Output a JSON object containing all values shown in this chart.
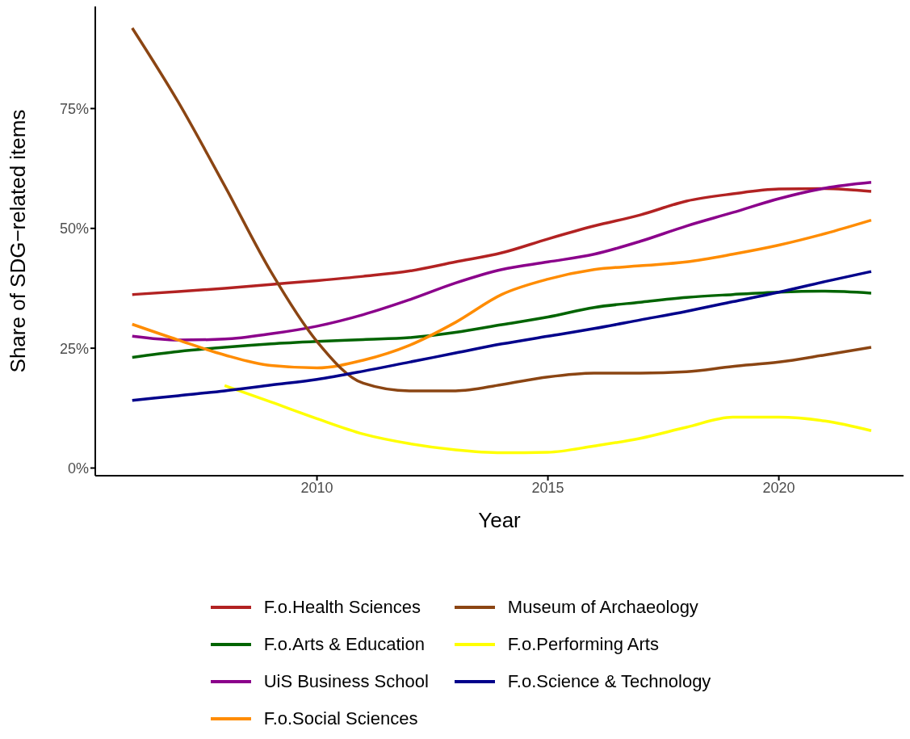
{
  "chart_data": {
    "type": "line",
    "xlabel": "Year",
    "ylabel": "Share of SDG−related items",
    "xlim": [
      2005.2,
      2022.7
    ],
    "xticks": [
      2010,
      2015,
      2020
    ],
    "ylim": [
      -1.6,
      96.3
    ],
    "yticks": [
      {
        "value": 0,
        "label": "0%"
      },
      {
        "value": 25,
        "label": "25%"
      },
      {
        "value": 50,
        "label": "50%"
      },
      {
        "value": 75,
        "label": "75%"
      }
    ],
    "legend": "bottom",
    "marker": "none",
    "line_style": "solid",
    "x": [
      2006,
      2007,
      2008,
      2009,
      2010,
      2011,
      2012,
      2013,
      2014,
      2015,
      2016,
      2017,
      2018,
      2019,
      2020,
      2021,
      2022
    ],
    "series": [
      {
        "name": "F.o.Health Sciences",
        "color": "#b22222",
        "values": [
          36.2,
          36.8,
          37.5,
          38.3,
          39.1,
          40,
          41.1,
          43,
          44.9,
          47.8,
          50.5,
          52.8,
          55.7,
          57.2,
          58.2,
          58.3,
          57.7
        ]
      },
      {
        "name": "F.o.Arts & Education",
        "color": "#006400",
        "values": [
          23.1,
          24.3,
          25.2,
          25.9,
          26.4,
          26.8,
          27.2,
          28.3,
          29.9,
          31.5,
          33.5,
          34.6,
          35.6,
          36.2,
          36.7,
          36.9,
          36.5
        ]
      },
      {
        "name": "UiS Business School",
        "color": "#8b008b",
        "values": [
          27.5,
          26.7,
          26.9,
          28,
          29.6,
          32,
          35.1,
          38.6,
          41.4,
          43,
          44.6,
          47.3,
          50.5,
          53.3,
          56.2,
          58.4,
          59.6
        ]
      },
      {
        "name": "F.o.Social Sciences",
        "color": "#ff8c00",
        "values": [
          30,
          26.7,
          23.6,
          21.4,
          20.9,
          22.5,
          25.6,
          30.4,
          36.2,
          39.4,
          41.4,
          42.2,
          43,
          44.6,
          46.5,
          48.9,
          51.7
        ]
      },
      {
        "name": "Museum of Archaeology",
        "color": "#8b4513",
        "values": [
          91.8,
          76.3,
          58.9,
          41,
          26.4,
          17.7,
          16.1,
          16.1,
          17.4,
          19,
          19.8,
          19.8,
          20.1,
          21.2,
          22.1,
          23.6,
          25.2
        ]
      },
      {
        "name": "F.o.Performing Arts",
        "color": "#ffff00",
        "x": [
          2008,
          2009,
          2010,
          2011,
          2012,
          2013,
          2014,
          2015,
          2016,
          2017,
          2018,
          2019,
          2020,
          2021,
          2022
        ],
        "values": [
          17.2,
          13.8,
          10.3,
          7.1,
          5.1,
          3.8,
          3.2,
          3.3,
          4.6,
          6.2,
          8.5,
          10.6,
          10.6,
          9.8,
          7.8
        ]
      },
      {
        "name": "F.o.Science & Technology",
        "color": "#00008b",
        "values": [
          14.1,
          15.1,
          16.1,
          17.3,
          18.5,
          20.2,
          22.1,
          24,
          25.9,
          27.5,
          29.1,
          30.9,
          32.7,
          34.7,
          36.7,
          38.9,
          41
        ]
      }
    ]
  }
}
